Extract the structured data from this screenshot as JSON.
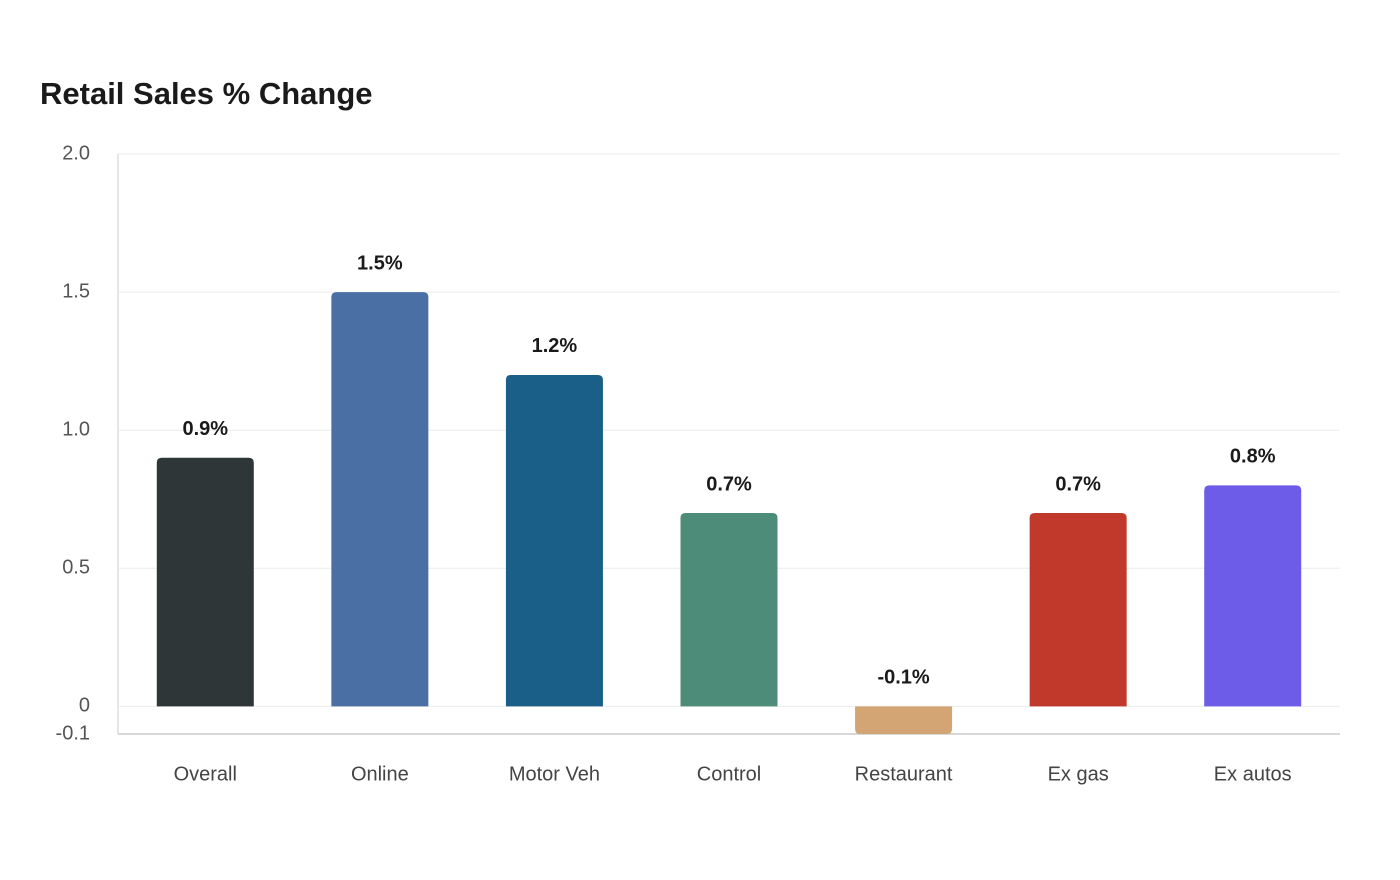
{
  "chart_data": {
    "type": "bar",
    "title": "Retail Sales % Change",
    "categories": [
      "Overall",
      "Online",
      "Motor Veh",
      "Control",
      "Restaurant",
      "Ex gas",
      "Ex autos"
    ],
    "values": [
      0.9,
      1.5,
      1.2,
      0.7,
      -0.1,
      0.7,
      0.8
    ],
    "value_labels": [
      "0.9%",
      "1.5%",
      "1.2%",
      "0.7%",
      "-0.1%",
      "0.7%",
      "0.8%"
    ],
    "colors": [
      "#2e3638",
      "#4a6fa5",
      "#1a5f87",
      "#4e8c7a",
      "#d4a574",
      "#c0392b",
      "#6c5ce7"
    ],
    "ylim": [
      -0.1,
      2.0
    ],
    "yticks": [
      {
        "value": 2.0,
        "label": "2.0"
      },
      {
        "value": 1.5,
        "label": "1.5"
      },
      {
        "value": 1.0,
        "label": "1.0"
      },
      {
        "value": 0.5,
        "label": "0.5"
      },
      0,
      -0.1
    ],
    "grid": true
  }
}
